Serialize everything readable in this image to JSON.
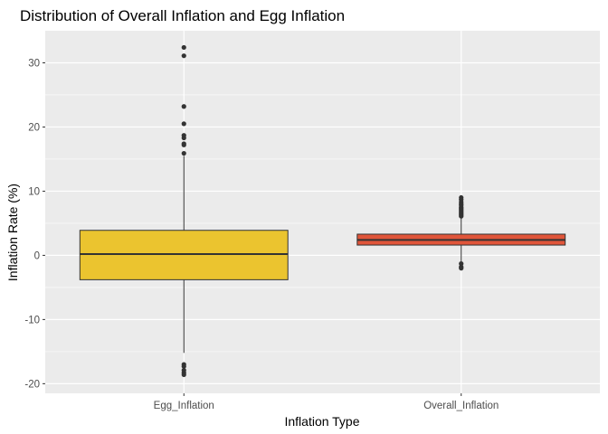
{
  "chart_data": {
    "type": "boxplot",
    "title": "Distribution of Overall Inflation and Egg Inflation",
    "xlabel": "Inflation Type",
    "ylabel": "Inflation Rate (%)",
    "ylim": [
      -21.5,
      35
    ],
    "yticks": [
      -20,
      -10,
      0,
      10,
      20,
      30
    ],
    "grid": true,
    "legend": "none",
    "categories": [
      "Egg_Inflation",
      "Overall_Inflation"
    ],
    "boxes": [
      {
        "category": "Egg_Inflation",
        "color": "#EBC42F",
        "q1": -3.8,
        "median": 0.2,
        "q3": 3.9,
        "whisker_low": -15.2,
        "whisker_high": 15.5,
        "outliers": [
          32.4,
          31.1,
          23.2,
          20.5,
          18.7,
          18.3,
          17.4,
          17.2,
          15.9,
          -17.0,
          -17.3,
          -17.9,
          -18.3,
          -18.6
        ]
      },
      {
        "category": "Overall_Inflation",
        "color": "#E0553A",
        "q1": 1.6,
        "median": 2.4,
        "q3": 3.3,
        "whisker_low": -1.0,
        "whisker_high": 5.8,
        "outliers": [
          9.0,
          8.7,
          8.3,
          8.0,
          7.8,
          7.5,
          7.3,
          7.1,
          6.9,
          6.7,
          6.5,
          6.3,
          6.1,
          -1.3,
          -1.8,
          -2.0
        ]
      }
    ]
  }
}
